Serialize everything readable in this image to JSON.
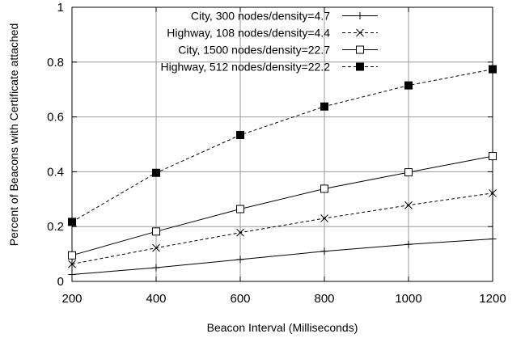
{
  "chart_data": {
    "type": "line",
    "xlabel": "Beacon Interval (Milliseconds)",
    "ylabel": "Percent of Beacons with Certificate attached",
    "xlim": [
      200,
      1200
    ],
    "ylim": [
      0,
      1
    ],
    "x_ticks": [
      "200",
      "400",
      "600",
      "800",
      "1000",
      "1200"
    ],
    "y_ticks": [
      "0",
      "0.2",
      "0.4",
      "0.6",
      "0.8",
      "1"
    ],
    "grid": true,
    "legend_position": "top-left",
    "x": [
      200,
      400,
      600,
      800,
      1000,
      1200
    ],
    "series": [
      {
        "name": "City, 300 nodes/density=4.7",
        "marker": "plus",
        "line": "solid",
        "values": [
          0.025,
          0.05,
          0.08,
          0.11,
          0.135,
          0.155
        ]
      },
      {
        "name": "Highway, 108 nodes/density=4.4",
        "marker": "cross",
        "line": "dashed",
        "values": [
          0.063,
          0.122,
          0.178,
          0.23,
          0.278,
          0.322
        ]
      },
      {
        "name": "City, 1500 nodes/density=22.7",
        "marker": "open-square",
        "line": "solid",
        "values": [
          0.095,
          0.182,
          0.264,
          0.338,
          0.398,
          0.457
        ]
      },
      {
        "name": "Highway, 512 nodes/density=22.2",
        "marker": "filled-square",
        "line": "dashed",
        "values": [
          0.217,
          0.396,
          0.534,
          0.638,
          0.715,
          0.774
        ]
      }
    ]
  }
}
